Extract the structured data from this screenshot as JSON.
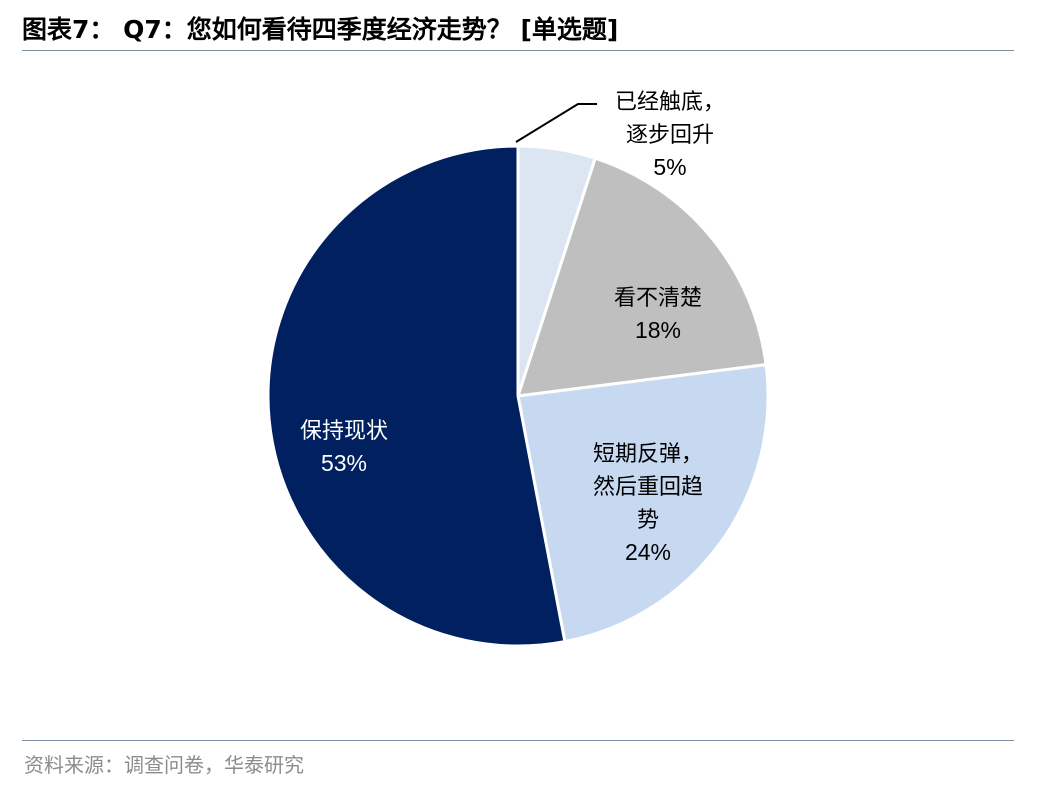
{
  "header": {
    "title": "图表7： Q7：您如何看待四季度经济走势？ [单选题]"
  },
  "footer": {
    "source": "资料来源：调查问卷，华泰研究"
  },
  "colors": {
    "rule": "#7f8fa6",
    "slice_edge": "#ffffff"
  },
  "chart_data": {
    "type": "pie",
    "title": "Q7：您如何看待四季度经济走势？ [单选题]",
    "start": "12 o'clock",
    "direction": "clockwise",
    "slices": [
      {
        "label": "已经触底，逐步回升",
        "lines": [
          "已经触底，",
          "逐步回升"
        ],
        "value": 5,
        "pct_label": "5%",
        "color": "#dce6f2",
        "text_color": "#000000",
        "leader_line": true
      },
      {
        "label": "看不清楚",
        "lines": [
          "看不清楚"
        ],
        "value": 18,
        "pct_label": "18%",
        "color": "#bfbfbf",
        "text_color": "#000000",
        "leader_line": false
      },
      {
        "label": "短期反弹，然后重回趋势",
        "lines": [
          "短期反弹，",
          "然后重回趋",
          "势"
        ],
        "value": 24,
        "pct_label": "24%",
        "color": "#c6d9f1",
        "text_color": "#000000",
        "leader_line": false
      },
      {
        "label": "保持现状",
        "lines": [
          "保持现状"
        ],
        "value": 53,
        "pct_label": "53%",
        "color": "#002060",
        "text_color": "#ffffff",
        "leader_line": false
      }
    ]
  }
}
